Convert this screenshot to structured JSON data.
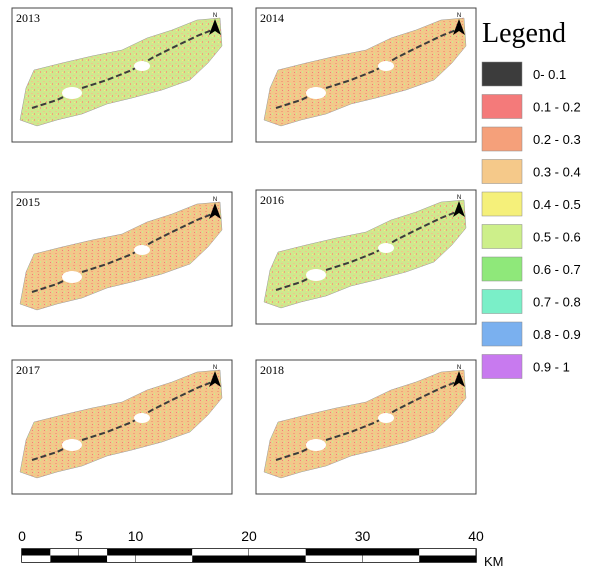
{
  "panels": [
    {
      "year": "2013",
      "north": "N"
    },
    {
      "year": "2014",
      "north": "N"
    },
    {
      "year": "2015",
      "north": "N"
    },
    {
      "year": "2016",
      "north": "N"
    },
    {
      "year": "2017",
      "north": "N"
    },
    {
      "year": "2018",
      "north": "N"
    }
  ],
  "legend": {
    "title": "Legend",
    "items": [
      {
        "label": "0- 0.1",
        "color": "#3c3c3c"
      },
      {
        "label": "0.1 - 0.2",
        "color": "#f47a7a"
      },
      {
        "label": "0.2 - 0.3",
        "color": "#f5a07a"
      },
      {
        "label": "0.3 - 0.4",
        "color": "#f5c98a"
      },
      {
        "label": "0.4 - 0.5",
        "color": "#f5f07a"
      },
      {
        "label": "0.5 - 0.6",
        "color": "#cdef8a"
      },
      {
        "label": "0.6 - 0.7",
        "color": "#8fe87a"
      },
      {
        "label": "0.7 - 0.8",
        "color": "#7aefc8"
      },
      {
        "label": "0.8 - 0.9",
        "color": "#7ab0ef"
      },
      {
        "label": "0.9 - 1",
        "color": "#c87aef"
      }
    ]
  },
  "scale_bar": {
    "ticks": [
      0,
      5,
      10,
      20,
      30,
      40
    ],
    "unit": "KM"
  }
}
